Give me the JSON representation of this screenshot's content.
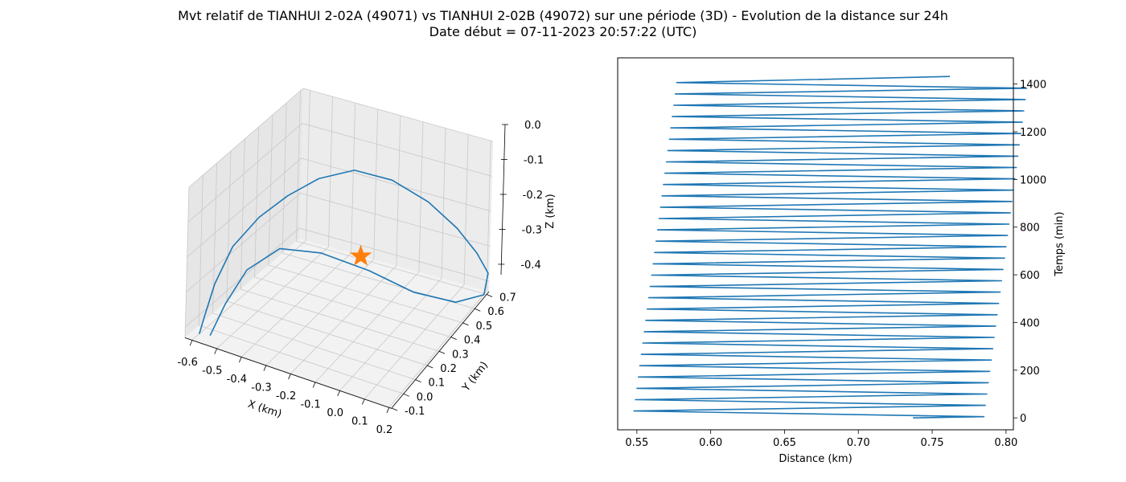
{
  "figure": {
    "title": "Mvt relatif de TIANHUI 2-02A (49071) vs TIANHUI 2-02B (49072) sur une période (3D) - Evolution de la distance sur 24h",
    "subtitle": "Date début = 07-11-2023 20:57:22 (UTC)"
  },
  "colors": {
    "series": "#1f77b4",
    "marker": "#ff7f0e",
    "pane": "#f2f2f2",
    "grid": "#c8c8c8"
  },
  "chart_data": [
    {
      "type": "line3d",
      "xlabel": "X (km)",
      "ylabel": "Y (km)",
      "zlabel": "Z (km)",
      "xlim": [
        -0.63,
        0.21
      ],
      "ylim": [
        -0.1,
        0.72
      ],
      "zlim": [
        -0.43,
        0.0
      ],
      "xticks": [
        "-0.6",
        "-0.5",
        "-0.4",
        "-0.3",
        "-0.2",
        "-0.1",
        "0.0",
        "0.1",
        "0.2"
      ],
      "yticks": [
        "-0.1",
        "0.0",
        "0.1",
        "0.2",
        "0.3",
        "0.4",
        "0.5",
        "0.6",
        "0.7"
      ],
      "zticks": [
        "0.0",
        "-0.1",
        "-0.2",
        "-0.3",
        "-0.4"
      ],
      "grid": true,
      "series": [
        {
          "points": [
            [
              -0.6,
              -0.05,
              -0.43
            ],
            [
              -0.62,
              0.02,
              -0.41
            ],
            [
              -0.62,
              0.09,
              -0.34
            ],
            [
              -0.59,
              0.16,
              -0.25
            ],
            [
              -0.52,
              0.22,
              -0.17
            ],
            [
              -0.44,
              0.28,
              -0.11
            ],
            [
              -0.35,
              0.34,
              -0.06
            ],
            [
              -0.24,
              0.4,
              -0.03
            ],
            [
              -0.12,
              0.46,
              -0.05
            ],
            [
              -0.01,
              0.53,
              -0.11
            ],
            [
              0.07,
              0.6,
              -0.19
            ],
            [
              0.12,
              0.66,
              -0.27
            ],
            [
              0.14,
              0.71,
              -0.34
            ],
            [
              0.12,
              0.72,
              -0.41
            ],
            [
              0.04,
              0.66,
              -0.43
            ],
            [
              -0.07,
              0.55,
              -0.39
            ],
            [
              -0.18,
              0.42,
              -0.31
            ],
            [
              -0.3,
              0.28,
              -0.24
            ],
            [
              -0.4,
              0.16,
              -0.21
            ],
            [
              -0.47,
              0.05,
              -0.25
            ],
            [
              -0.51,
              -0.03,
              -0.33
            ],
            [
              -0.54,
              -0.08,
              -0.41
            ]
          ]
        }
      ],
      "marker": {
        "shape": "star",
        "point": [
          -0.15,
          0.3,
          -0.22
        ]
      }
    },
    {
      "type": "line",
      "xlabel": "Distance (km)",
      "ylabel": "Temps (min)",
      "xlim": [
        0.537,
        0.805
      ],
      "ylim": [
        -50,
        1510
      ],
      "xticks": [
        0.55,
        0.6,
        0.65,
        0.7,
        0.75,
        0.8
      ],
      "yticks": [
        0,
        200,
        400,
        600,
        800,
        1000,
        1200,
        1400
      ],
      "grid": false,
      "series": [
        {
          "start": [
            0.737,
            0
          ],
          "end": [
            0.762,
            1432
          ],
          "period_min": 47.5,
          "minima": [
            0.548,
            0.549,
            0.55,
            0.551,
            0.552,
            0.553,
            0.554,
            0.555,
            0.556,
            0.557,
            0.558,
            0.559,
            0.56,
            0.561,
            0.562,
            0.563,
            0.564,
            0.565,
            0.566,
            0.567,
            0.568,
            0.569,
            0.57,
            0.571,
            0.572,
            0.573,
            0.574,
            0.575,
            0.576,
            0.577,
            0.578
          ],
          "maxima": [
            0.785,
            0.786,
            0.787,
            0.788,
            0.789,
            0.79,
            0.791,
            0.792,
            0.793,
            0.794,
            0.795,
            0.796,
            0.797,
            0.798,
            0.799,
            0.8,
            0.801,
            0.802,
            0.803,
            0.804,
            0.805,
            0.806,
            0.807,
            0.808,
            0.809,
            0.81,
            0.811,
            0.812,
            0.813,
            0.814
          ]
        }
      ]
    }
  ]
}
